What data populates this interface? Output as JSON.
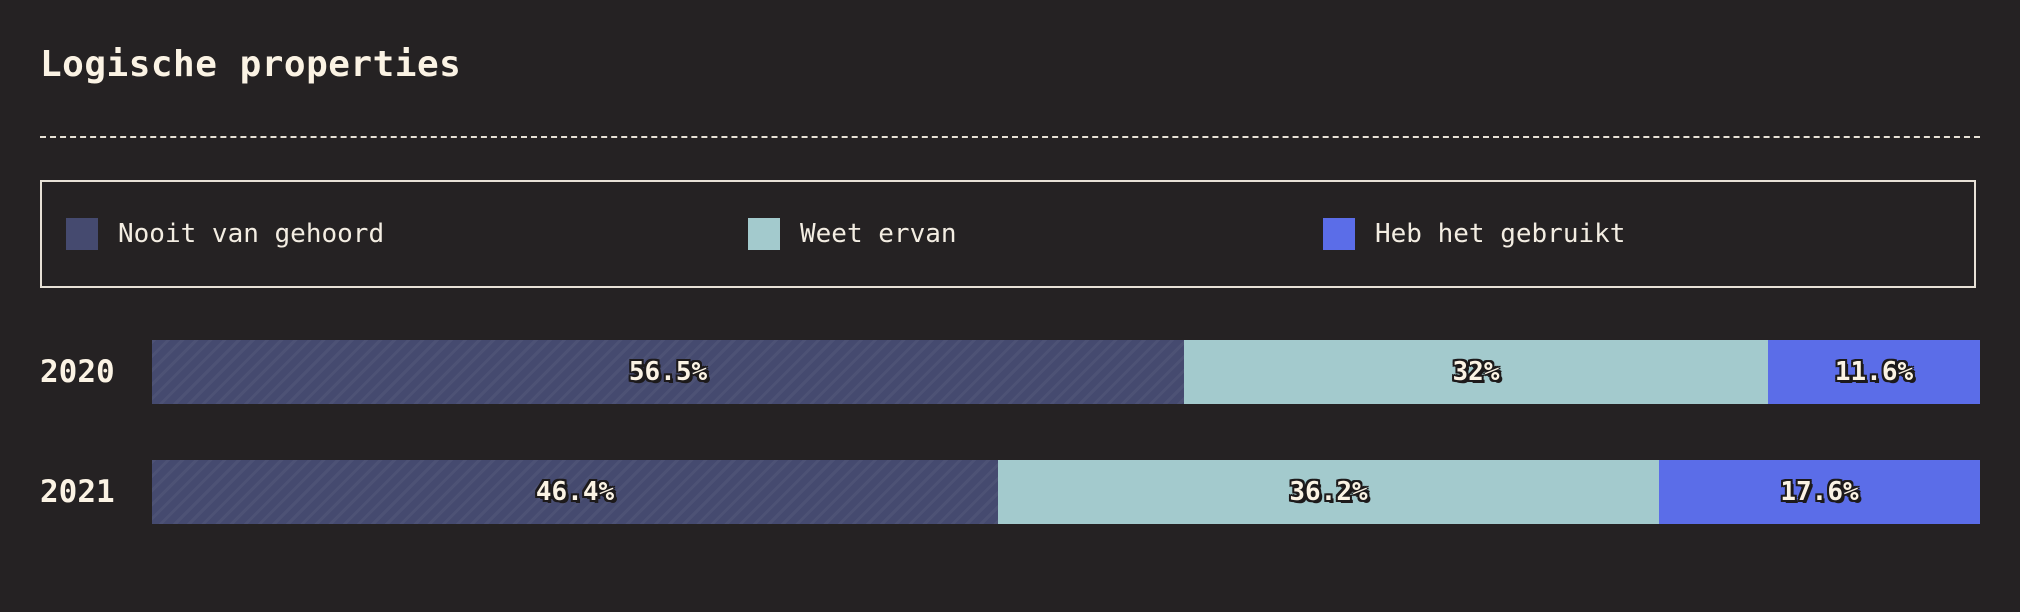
{
  "title": "Logische properties",
  "chart_data": {
    "type": "bar",
    "stacked": true,
    "orientation": "horizontal",
    "title": "Logische properties",
    "categories": [
      "2020",
      "2021"
    ],
    "series": [
      {
        "name": "Nooit van gehoord",
        "color": "#454a6f",
        "pattern": "hatch",
        "values": [
          56.5,
          46.4
        ],
        "labels": [
          "56.5%",
          "46.4%"
        ]
      },
      {
        "name": "Weet ervan",
        "color": "#a3cacd",
        "values": [
          32,
          36.2
        ],
        "labels": [
          "32%",
          "36.2%"
        ]
      },
      {
        "name": "Heb het gebruikt",
        "color": "#5b6de8",
        "values": [
          11.6,
          17.6
        ],
        "labels": [
          "11.6%",
          "17.6%"
        ]
      }
    ],
    "xlim": [
      0,
      100
    ],
    "unit": "%",
    "legend_position": "top",
    "grid": false
  },
  "colors": {
    "background": "#252223",
    "text": "#fbf3e4",
    "border": "#e7e1d6"
  }
}
